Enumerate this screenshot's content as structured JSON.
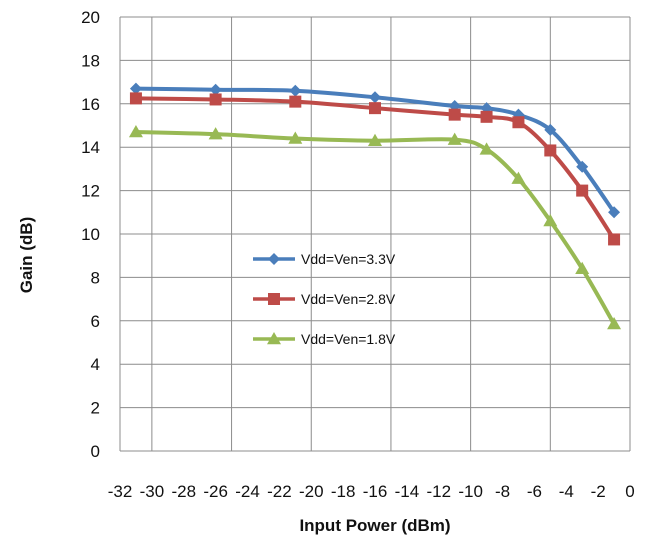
{
  "chart_data": {
    "type": "line",
    "title": "",
    "xlabel": "Input Power (dBm)",
    "ylabel": "Gain (dB)",
    "xlim": [
      -32,
      0
    ],
    "ylim": [
      0,
      20
    ],
    "xticks": [
      -32,
      -30,
      -28,
      -26,
      -24,
      -22,
      -20,
      -18,
      -16,
      -14,
      -12,
      -10,
      -8,
      -6,
      -4,
      -2,
      0
    ],
    "yticks": [
      0,
      2,
      4,
      6,
      8,
      10,
      12,
      14,
      16,
      18,
      20
    ],
    "grid": true,
    "legend_position": "center-left",
    "series": [
      {
        "name": "Vdd=Ven=3.3V",
        "color": "#4a7ebb",
        "marker": "diamond",
        "x": [
          -31,
          -26,
          -21,
          -16,
          -11,
          -9,
          -7,
          -5,
          -3,
          -1
        ],
        "y": [
          16.7,
          16.65,
          16.6,
          16.3,
          15.9,
          15.8,
          15.5,
          14.8,
          13.1,
          11.0
        ]
      },
      {
        "name": "Vdd=Ven=2.8V",
        "color": "#be4b48",
        "marker": "square",
        "x": [
          -31,
          -26,
          -21,
          -16,
          -11,
          -9,
          -7,
          -5,
          -3,
          -1
        ],
        "y": [
          16.25,
          16.2,
          16.1,
          15.8,
          15.5,
          15.4,
          15.15,
          13.85,
          12.0,
          9.75
        ]
      },
      {
        "name": "Vdd=Ven=1.8V",
        "color": "#98b954",
        "marker": "triangle",
        "x": [
          -31,
          -26,
          -21,
          -16,
          -11,
          -9,
          -7,
          -5,
          -3,
          -1
        ],
        "y": [
          14.7,
          14.6,
          14.4,
          14.3,
          14.35,
          13.9,
          12.55,
          10.6,
          8.4,
          5.85
        ]
      }
    ]
  }
}
